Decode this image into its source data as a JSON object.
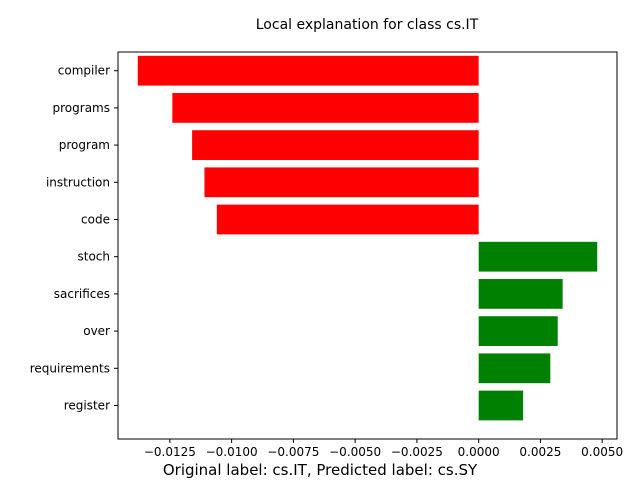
{
  "chart_data": {
    "type": "bar",
    "orientation": "horizontal",
    "title": "Local explanation for class cs.IT",
    "xlabel": "",
    "ylabel": "",
    "footer": "Original label: cs.IT, Predicted label: cs.SY",
    "xlim": [
      -0.0146,
      0.0056
    ],
    "grid": false,
    "legend": "none",
    "categories": [
      "compiler",
      "programs",
      "program",
      "instruction",
      "code",
      "stoch",
      "sacrifices",
      "over",
      "requirements",
      "register"
    ],
    "values": [
      -0.0138,
      -0.0124,
      -0.0116,
      -0.0111,
      -0.0106,
      0.0048,
      0.0034,
      0.0032,
      0.0029,
      0.0018
    ],
    "x_ticks": [
      -0.0125,
      -0.01,
      -0.0075,
      -0.005,
      -0.0025,
      0.0,
      0.0025,
      0.005
    ],
    "x_tick_labels": [
      "−0.0125",
      "−0.0100",
      "−0.0075",
      "−0.0050",
      "−0.0025",
      "0.0000",
      "0.0025",
      "0.0050"
    ],
    "colors": {
      "negative": "#ff0000",
      "positive": "#008000",
      "axes": "#000000"
    }
  }
}
